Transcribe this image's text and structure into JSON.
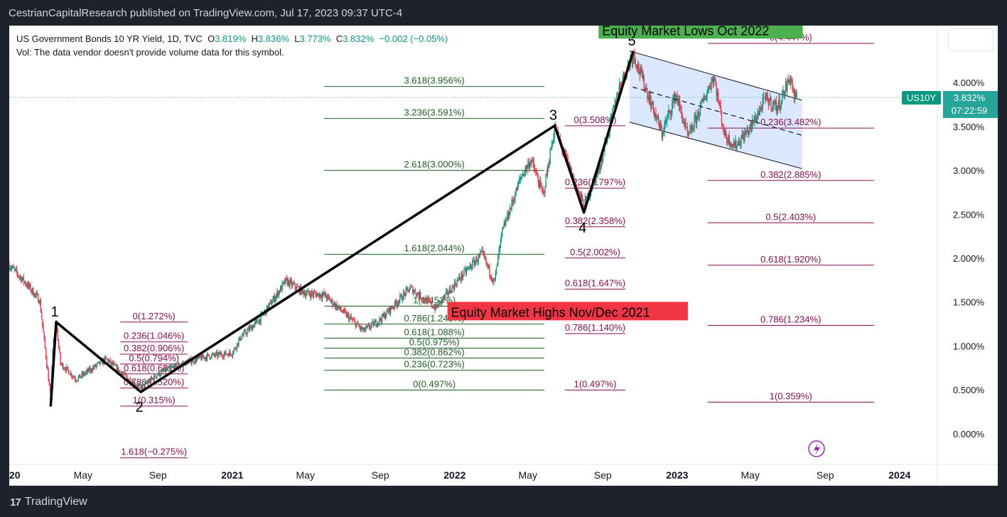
{
  "header": {
    "publisher_line": "CestrianCapitalResearch published on TradingView.com, Jul 17, 2023 09:37 UTC-4"
  },
  "legend": {
    "symbol": "US Government Bonds 10 YR Yield, 1D, TVC",
    "open_label": "O",
    "open": "3.819%",
    "high_label": "H",
    "high": "3.836%",
    "low_label": "L",
    "low": "3.773%",
    "close_label": "C",
    "close": "3.832%",
    "change": "−0.002 (−0.05%)",
    "volume_note": "Vol: The data vendor doesn't provide volume data for this symbol."
  },
  "price_tag": {
    "symbol": "US10Y",
    "price": "3.832%",
    "countdown": "07:22:59",
    "color": "#26a69a",
    "symbol_color": "#089981"
  },
  "footer": {
    "brand": "TradingView",
    "brand_mark": "17"
  },
  "colors": {
    "up": "#089981",
    "down": "#f23645",
    "fib_green": "#1b5e20",
    "fib_purple": "#880e4f",
    "channel": "#cfe0ff"
  },
  "chart_data": {
    "type": "candlestick",
    "y_axis": {
      "min": -0.35,
      "max": 4.65,
      "ticks": [
        "4.000%",
        "3.500%",
        "3.000%",
        "2.500%",
        "2.000%",
        "1.500%",
        "1.000%",
        "0.500%",
        "0.000%"
      ],
      "tick_values": [
        4.0,
        3.5,
        3.0,
        2.5,
        2.0,
        1.5,
        1.0,
        0.5,
        0.0
      ]
    },
    "x_axis": {
      "start": "2020-01-01",
      "end": "2024-03-03",
      "ticks": [
        {
          "label": "2020",
          "date": "2020-01-01",
          "bold": true
        },
        {
          "label": "May",
          "date": "2020-05-01",
          "bold": false
        },
        {
          "label": "Sep",
          "date": "2020-09-01",
          "bold": false
        },
        {
          "label": "2021",
          "date": "2021-01-01",
          "bold": true
        },
        {
          "label": "May",
          "date": "2021-05-01",
          "bold": false
        },
        {
          "label": "Sep",
          "date": "2021-09-01",
          "bold": false
        },
        {
          "label": "2022",
          "date": "2022-01-01",
          "bold": true
        },
        {
          "label": "May",
          "date": "2022-05-01",
          "bold": false
        },
        {
          "label": "Sep",
          "date": "2022-09-01",
          "bold": false
        },
        {
          "label": "2023",
          "date": "2023-01-01",
          "bold": true
        },
        {
          "label": "May",
          "date": "2023-05-01",
          "bold": false
        },
        {
          "label": "Sep",
          "date": "2023-09-01",
          "bold": false
        },
        {
          "label": "2024",
          "date": "2024-01-01",
          "bold": true
        }
      ]
    },
    "price_path": [
      {
        "date": "2020-01-01",
        "y": 1.92
      },
      {
        "date": "2020-01-25",
        "y": 1.74
      },
      {
        "date": "2020-02-20",
        "y": 1.52
      },
      {
        "date": "2020-03-09",
        "y": 0.4
      },
      {
        "date": "2020-03-12",
        "y": 0.95
      },
      {
        "date": "2020-03-18",
        "y": 1.27
      },
      {
        "date": "2020-03-25",
        "y": 0.8
      },
      {
        "date": "2020-04-20",
        "y": 0.62
      },
      {
        "date": "2020-06-08",
        "y": 0.85
      },
      {
        "date": "2020-07-15",
        "y": 0.62
      },
      {
        "date": "2020-08-04",
        "y": 0.52
      },
      {
        "date": "2020-09-01",
        "y": 0.68
      },
      {
        "date": "2020-10-20",
        "y": 0.82
      },
      {
        "date": "2020-11-20",
        "y": 0.88
      },
      {
        "date": "2021-01-01",
        "y": 0.92
      },
      {
        "date": "2021-01-15",
        "y": 1.1
      },
      {
        "date": "2021-02-15",
        "y": 1.3
      },
      {
        "date": "2021-03-30",
        "y": 1.74
      },
      {
        "date": "2021-05-01",
        "y": 1.6
      },
      {
        "date": "2021-06-01",
        "y": 1.58
      },
      {
        "date": "2021-07-15",
        "y": 1.3
      },
      {
        "date": "2021-08-04",
        "y": 1.17
      },
      {
        "date": "2021-09-01",
        "y": 1.3
      },
      {
        "date": "2021-10-20",
        "y": 1.66
      },
      {
        "date": "2021-12-01",
        "y": 1.43
      },
      {
        "date": "2022-01-10",
        "y": 1.78
      },
      {
        "date": "2022-02-15",
        "y": 2.05
      },
      {
        "date": "2022-03-07",
        "y": 1.72
      },
      {
        "date": "2022-03-20",
        "y": 2.3
      },
      {
        "date": "2022-04-20",
        "y": 2.93
      },
      {
        "date": "2022-05-06",
        "y": 3.12
      },
      {
        "date": "2022-05-26",
        "y": 2.72
      },
      {
        "date": "2022-06-14",
        "y": 3.49
      },
      {
        "date": "2022-07-15",
        "y": 2.9
      },
      {
        "date": "2022-08-01",
        "y": 2.6
      },
      {
        "date": "2022-08-25",
        "y": 3.0
      },
      {
        "date": "2022-09-28",
        "y": 3.95
      },
      {
        "date": "2022-10-21",
        "y": 4.33
      },
      {
        "date": "2022-11-15",
        "y": 3.85
      },
      {
        "date": "2022-12-07",
        "y": 3.42
      },
      {
        "date": "2022-12-30",
        "y": 3.87
      },
      {
        "date": "2023-01-19",
        "y": 3.37
      },
      {
        "date": "2023-03-02",
        "y": 4.08
      },
      {
        "date": "2023-03-20",
        "y": 3.4
      },
      {
        "date": "2023-04-06",
        "y": 3.28
      },
      {
        "date": "2023-05-01",
        "y": 3.48
      },
      {
        "date": "2023-05-26",
        "y": 3.82
      },
      {
        "date": "2023-06-15",
        "y": 3.72
      },
      {
        "date": "2023-07-06",
        "y": 4.07
      },
      {
        "date": "2023-07-12",
        "y": 3.84
      },
      {
        "date": "2023-07-17",
        "y": 3.832
      }
    ],
    "elliott_wave": [
      {
        "label": "",
        "date": "2020-03-09",
        "y": 0.31
      },
      {
        "label": "1",
        "date": "2020-03-18",
        "y": 1.272
      },
      {
        "label": "2",
        "date": "2020-08-04",
        "y": 0.475
      },
      {
        "label": "3",
        "date": "2022-06-14",
        "y": 3.51
      },
      {
        "label": "4",
        "date": "2022-08-01",
        "y": 2.52
      },
      {
        "label": "5",
        "date": "2022-10-21",
        "y": 4.36
      }
    ],
    "fib_sets": [
      {
        "x_start": "2020-07-01",
        "x_end": "2020-10-20",
        "color": "purple",
        "levels": [
          {
            "label": "0(1.272%)",
            "y": 1.272
          },
          {
            "label": "0.236(1.046%)",
            "y": 1.046
          },
          {
            "label": "0.382(0.906%)",
            "y": 0.906
          },
          {
            "label": "0.5(0.794%)",
            "y": 0.794
          },
          {
            "label": "0.618(0.681%)",
            "y": 0.681
          },
          {
            "label": "0.786(0.520%)",
            "y": 0.52
          },
          {
            "label": "1(0.315%)",
            "y": 0.315
          },
          {
            "label": "1.618(−0.275%)",
            "y": -0.275
          }
        ]
      },
      {
        "x_start": "2021-06-01",
        "x_end": "2022-05-28",
        "color": "green",
        "levels": [
          {
            "label": "3.618(3.956%)",
            "y": 3.956
          },
          {
            "label": "3.236(3.591%)",
            "y": 3.591
          },
          {
            "label": "2.618(3.000%)",
            "y": 3.0
          },
          {
            "label": "1.618(2.044%)",
            "y": 2.044
          },
          {
            "label": "1(1.453%)",
            "y": 1.453
          },
          {
            "label": "0.786(1.248%)",
            "y": 1.248
          },
          {
            "label": "0.618(1.088%)",
            "y": 1.088
          },
          {
            "label": "0.5(0.975%)",
            "y": 0.975
          },
          {
            "label": "0.382(0.862%)",
            "y": 0.862
          },
          {
            "label": "0.236(0.723%)",
            "y": 0.723
          },
          {
            "label": "0(0.497%)",
            "y": 0.497
          }
        ]
      },
      {
        "x_start": "2022-07-01",
        "x_end": "2022-10-08",
        "color": "purple",
        "levels": [
          {
            "label": "0(3.508%)",
            "y": 3.508
          },
          {
            "label": "0.236(2.797%)",
            "y": 2.797
          },
          {
            "label": "0.382(2.358%)",
            "y": 2.358
          },
          {
            "label": "0.5(2.002%)",
            "y": 2.002
          },
          {
            "label": "0.618(1.647%)",
            "y": 1.647
          },
          {
            "label": "0.786(1.140%)",
            "y": 1.14
          },
          {
            "label": "1(0.497%)",
            "y": 0.497
          }
        ]
      },
      {
        "x_start": "2023-02-20",
        "x_end": "2023-11-20",
        "color": "purple",
        "levels": [
          {
            "label": "0(4.447%)",
            "y": 4.447
          },
          {
            "label": "0.236(3.482%)",
            "y": 3.482
          },
          {
            "label": "0.382(2.885%)",
            "y": 2.885
          },
          {
            "label": "0.5(2.403%)",
            "y": 2.403
          },
          {
            "label": "0.618(1.920%)",
            "y": 1.92
          },
          {
            "label": "0.786(1.234%)",
            "y": 1.234
          },
          {
            "label": "1(0.359%)",
            "y": 0.359
          }
        ]
      }
    ],
    "channel": {
      "upper": [
        {
          "date": "2022-10-15",
          "y": 4.36
        },
        {
          "date": "2023-07-25",
          "y": 3.8
        }
      ],
      "lower": [
        {
          "date": "2022-10-15",
          "y": 3.55
        },
        {
          "date": "2023-07-25",
          "y": 3.02
        }
      ],
      "midline": [
        {
          "date": "2022-10-20",
          "y": 3.95
        },
        {
          "date": "2023-07-25",
          "y": 3.4
        }
      ]
    },
    "annotations": [
      {
        "text": "Equity Market Lows Oct 2022",
        "date": "2022-08-25",
        "y": 4.55,
        "bg": "#4caf50"
      },
      {
        "text": "Equity Market Highs Nov/Dec 2021",
        "date": "2021-12-20",
        "y": 1.34,
        "bg": "#f23645"
      }
    ]
  }
}
